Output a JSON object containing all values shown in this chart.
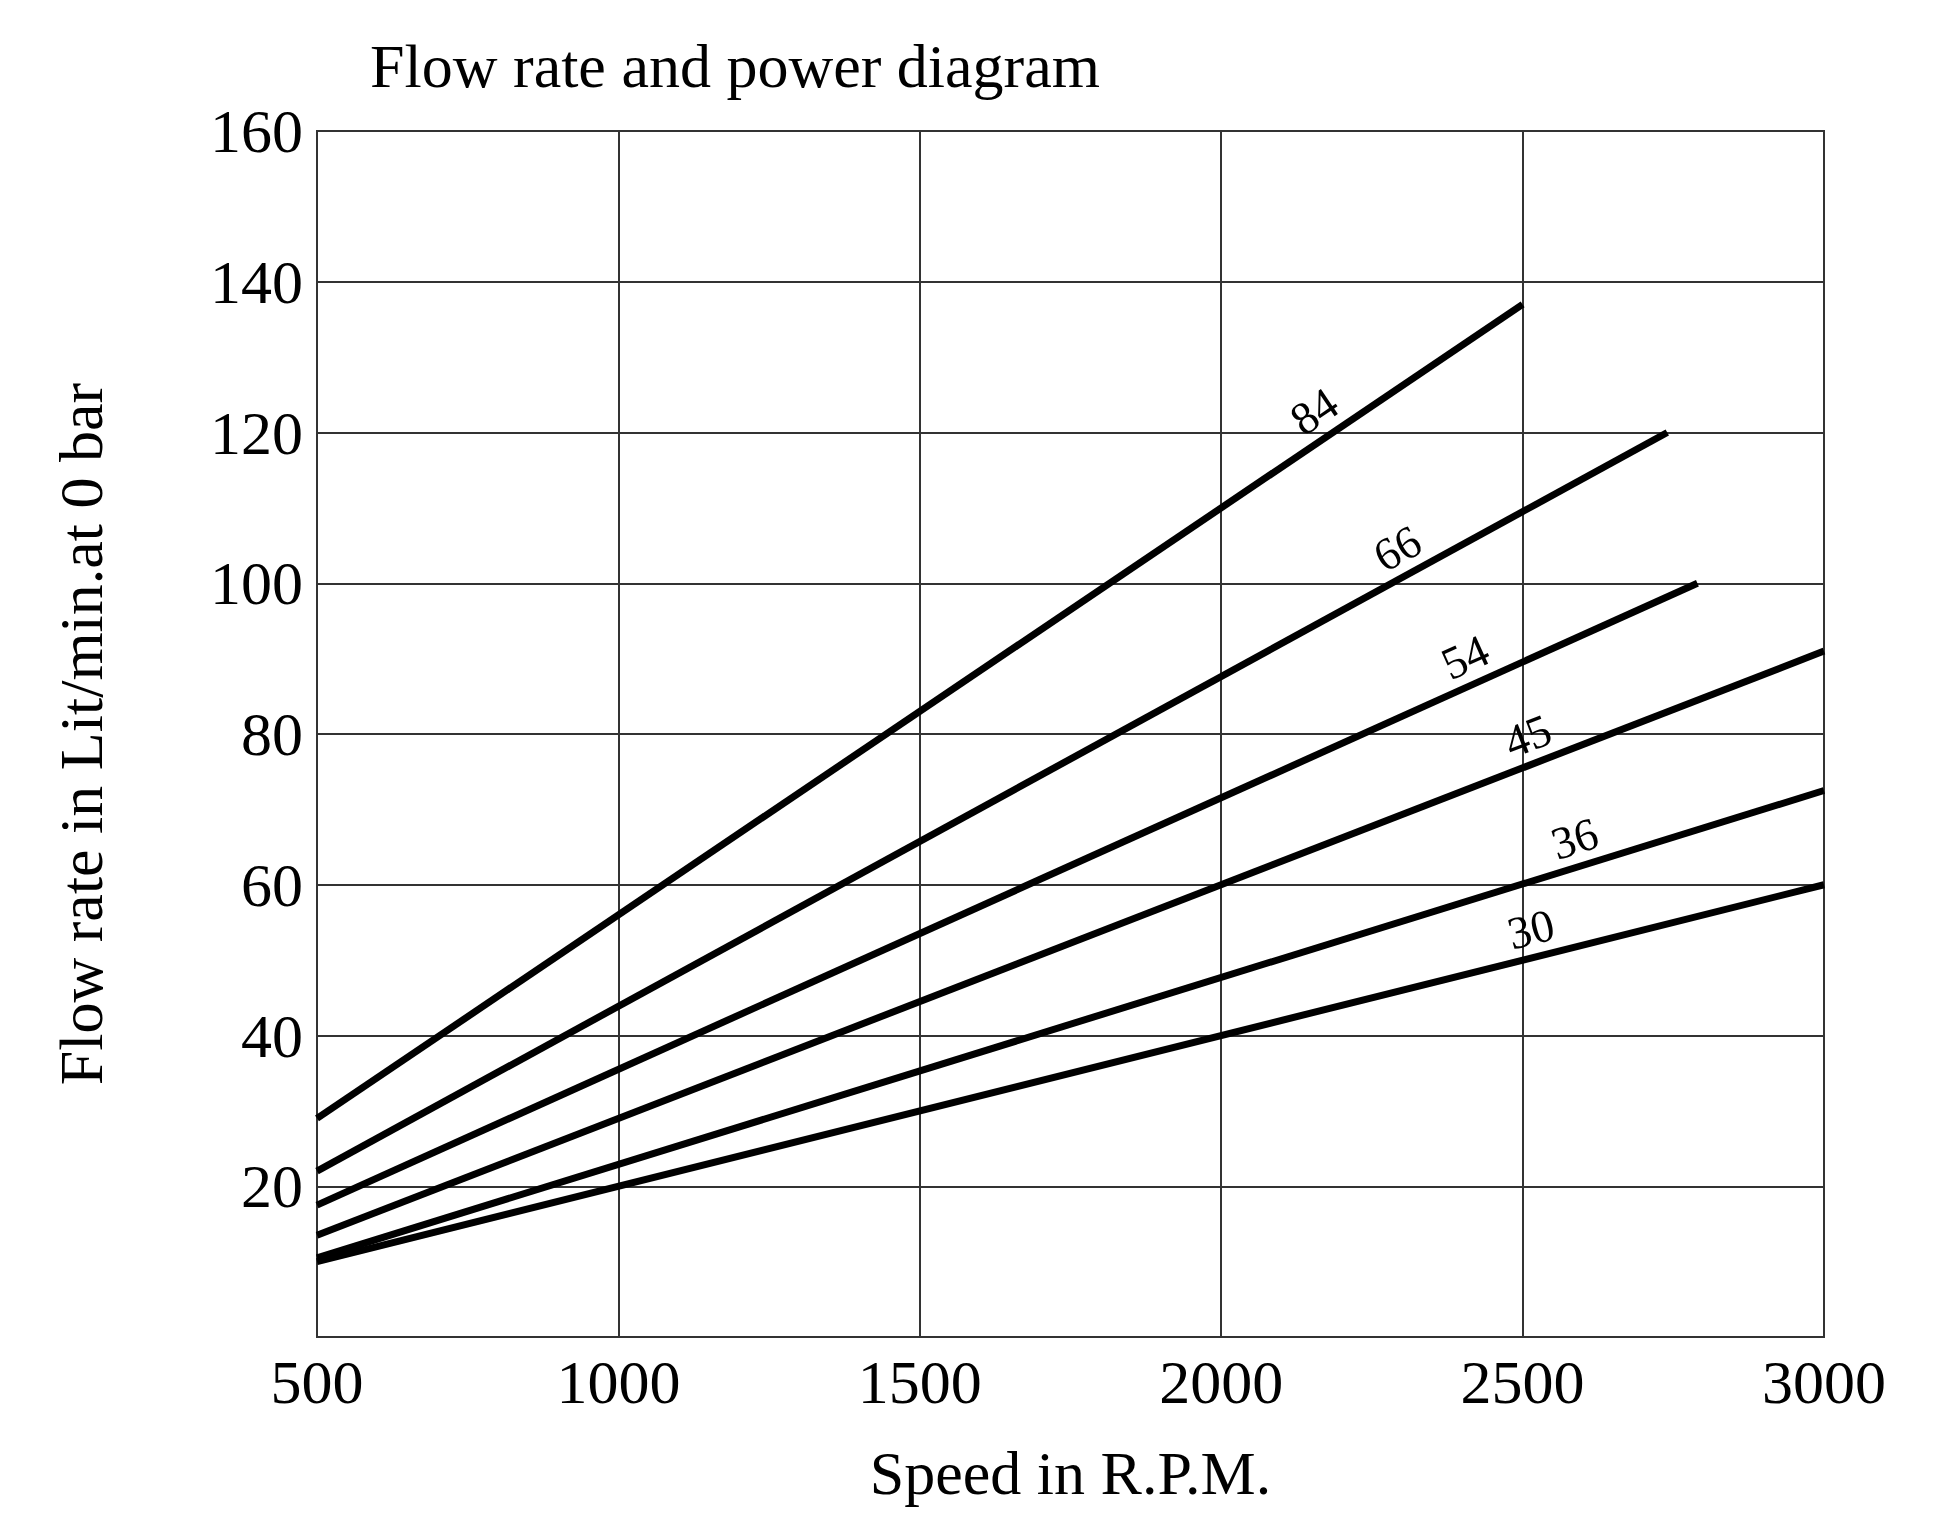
{
  "chart_data": {
    "type": "line",
    "title": "Flow rate and power diagram",
    "xlabel": "Speed in R.P.M.",
    "ylabel": "Flow rate in Lit/min.at 0 bar",
    "series": [
      {
        "name": "84",
        "color": "#000000",
        "x": [
          500,
          2500
        ],
        "values": [
          29,
          137
        ]
      },
      {
        "name": "66",
        "color": "#000000",
        "x": [
          500,
          2740
        ],
        "values": [
          22,
          120
        ]
      },
      {
        "name": "54",
        "color": "#000000",
        "x": [
          500,
          2790
        ],
        "values": [
          17.5,
          100
        ]
      },
      {
        "name": "45",
        "color": "#000000",
        "x": [
          500,
          3000
        ],
        "values": [
          13.5,
          91
        ]
      },
      {
        "name": "36",
        "color": "#000000",
        "x": [
          500,
          3000
        ],
        "values": [
          10.5,
          72.5
        ]
      },
      {
        "name": "30",
        "color": "#000000",
        "x": [
          500,
          3000
        ],
        "values": [
          10,
          60
        ]
      }
    ],
    "xlim": [
      500,
      3000
    ],
    "xticks": [
      500,
      1000,
      1500,
      2000,
      2500,
      3000
    ],
    "ylim": [
      0,
      160
    ],
    "yticks": [
      20,
      40,
      60,
      80,
      100,
      120,
      140,
      160
    ],
    "grid": true,
    "legend": false,
    "marker": "none",
    "line_style": "solid"
  }
}
